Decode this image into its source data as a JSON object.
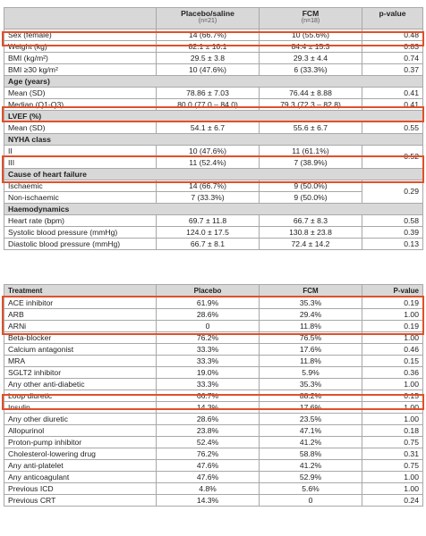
{
  "table1": {
    "headers": [
      "",
      "Placebo/saline",
      "FCM",
      "p-value"
    ],
    "subheaders": [
      "",
      "(n=21)",
      "(n=18)",
      ""
    ],
    "rows": [
      {
        "type": "row",
        "label": "Sex (female)",
        "placebo": "14 (66.7%)",
        "fcm": "10 (55.6%)",
        "p": "0.48"
      },
      {
        "type": "row",
        "label": "Weight (kg)",
        "placebo": "82.1 ± 10.1",
        "fcm": "84.4 ± 15.3",
        "p": "0.83"
      },
      {
        "type": "row",
        "label": "BMI (kg/m²)",
        "placebo": "29.5 ± 3.8",
        "fcm": "29.3 ± 4.4",
        "p": "0.74"
      },
      {
        "type": "row",
        "label": "BMI ≥30 kg/m²",
        "placebo": "10 (47.6%)",
        "fcm": "6 (33.3%)",
        "p": "0.37"
      },
      {
        "type": "section",
        "label": "Age (years)"
      },
      {
        "type": "row",
        "label": "Mean (SD)",
        "placebo": "78.86 ± 7.03",
        "fcm": "76.44 ± 8.88",
        "p": "0.41"
      },
      {
        "type": "row",
        "label": "Median (Q1-Q3)",
        "placebo": "80.0 (77.0 – 84.0)",
        "fcm": "79.3 (72.3 – 82.8)",
        "p": "0.41"
      },
      {
        "type": "section",
        "label": "LVEF (%)"
      },
      {
        "type": "row",
        "label": "Mean (SD)",
        "placebo": "54.1 ± 6.7",
        "fcm": "55.6 ± 6.7",
        "p": "0.55"
      },
      {
        "type": "section",
        "label": "NYHA class"
      },
      {
        "type": "row",
        "label": "II",
        "placebo": "10 (47.6%)",
        "fcm": "11 (61.1%)",
        "p": "0.52"
      },
      {
        "type": "row",
        "label": "III",
        "placebo": "11 (52.4%)",
        "fcm": "7 (38.9%)",
        "p": ""
      },
      {
        "type": "section",
        "label": "Cause of heart failure"
      },
      {
        "type": "row",
        "label": "Ischaemic",
        "placebo": "14 (66.7%)",
        "fcm": "9 (50.0%)",
        "p": "0.29"
      },
      {
        "type": "row",
        "label": "Non-ischaemic",
        "placebo": "7 (33.3%)",
        "fcm": "9 (50.0%)",
        "p": ""
      },
      {
        "type": "section",
        "label": "Haemodynamics"
      },
      {
        "type": "row",
        "label": "Heart rate (bpm)",
        "placebo": "69.7 ± 11.8",
        "fcm": "66.7 ± 8.3",
        "p": "0.58"
      },
      {
        "type": "row",
        "label": "Systolic blood pressure (mmHg)",
        "placebo": "124.0 ± 17.5",
        "fcm": "130.8 ± 23.8",
        "p": "0.39"
      },
      {
        "type": "row",
        "label": "Diastolic blood pressure (mmHg)",
        "placebo": "66.7 ± 8.1",
        "fcm": "72.4 ± 14.2",
        "p": "0.13"
      }
    ]
  },
  "table2": {
    "headers": [
      "Treatment",
      "Placebo",
      "FCM",
      "P-value"
    ],
    "rows": [
      {
        "label": "ACE inhibitor",
        "placebo": "61.9%",
        "fcm": "35.3%",
        "p": "0.19"
      },
      {
        "label": "ARB",
        "placebo": "28.6%",
        "fcm": "29.4%",
        "p": "1.00"
      },
      {
        "label": "ARNi",
        "placebo": "0",
        "fcm": "11.8%",
        "p": "0.19"
      },
      {
        "label": "Beta-blocker",
        "placebo": "76.2%",
        "fcm": "76.5%",
        "p": "1.00"
      },
      {
        "label": "Calcium antagonist",
        "placebo": "33.3%",
        "fcm": "17.6%",
        "p": "0.46"
      },
      {
        "label": "MRA",
        "placebo": "33.3%",
        "fcm": "11.8%",
        "p": "0.15"
      },
      {
        "label": "SGLT2 inhibitor",
        "placebo": "19.0%",
        "fcm": "5.9%",
        "p": "0.36"
      },
      {
        "label": "Any other anti-diabetic",
        "placebo": "33.3%",
        "fcm": "35.3%",
        "p": "1.00"
      },
      {
        "label": "Loop diuretic",
        "placebo": "66.7%",
        "fcm": "88.2%",
        "p": "0.15"
      },
      {
        "label": "Insulin",
        "placebo": "14.3%",
        "fcm": "17.6%",
        "p": "1.00"
      },
      {
        "label": "Any other diuretic",
        "placebo": "28.6%",
        "fcm": "23.5%",
        "p": "1.00"
      },
      {
        "label": "Allopurinol",
        "placebo": "23.8%",
        "fcm": "47.1%",
        "p": "0.18"
      },
      {
        "label": "Proton-pump inhibitor",
        "placebo": "52.4%",
        "fcm": "41.2%",
        "p": "0.75"
      },
      {
        "label": "Cholesterol-lowering drug",
        "placebo": "76.2%",
        "fcm": "58.8%",
        "p": "0.31"
      },
      {
        "label": "Any anti-platelet",
        "placebo": "47.6%",
        "fcm": "41.2%",
        "p": "0.75"
      },
      {
        "label": "Any anticoagulant",
        "placebo": "47.6%",
        "fcm": "52.9%",
        "p": "1.00"
      },
      {
        "label": "Previous ICD",
        "placebo": "4.8%",
        "fcm": "5.6%",
        "p": "1.00"
      },
      {
        "label": "Previous CRT",
        "placebo": "14.3%",
        "fcm": "0",
        "p": "0.24"
      }
    ]
  },
  "colors": {
    "highlight": "#e0502a",
    "shade": "#d8d8d8",
    "grid": "#a8a8a8"
  }
}
